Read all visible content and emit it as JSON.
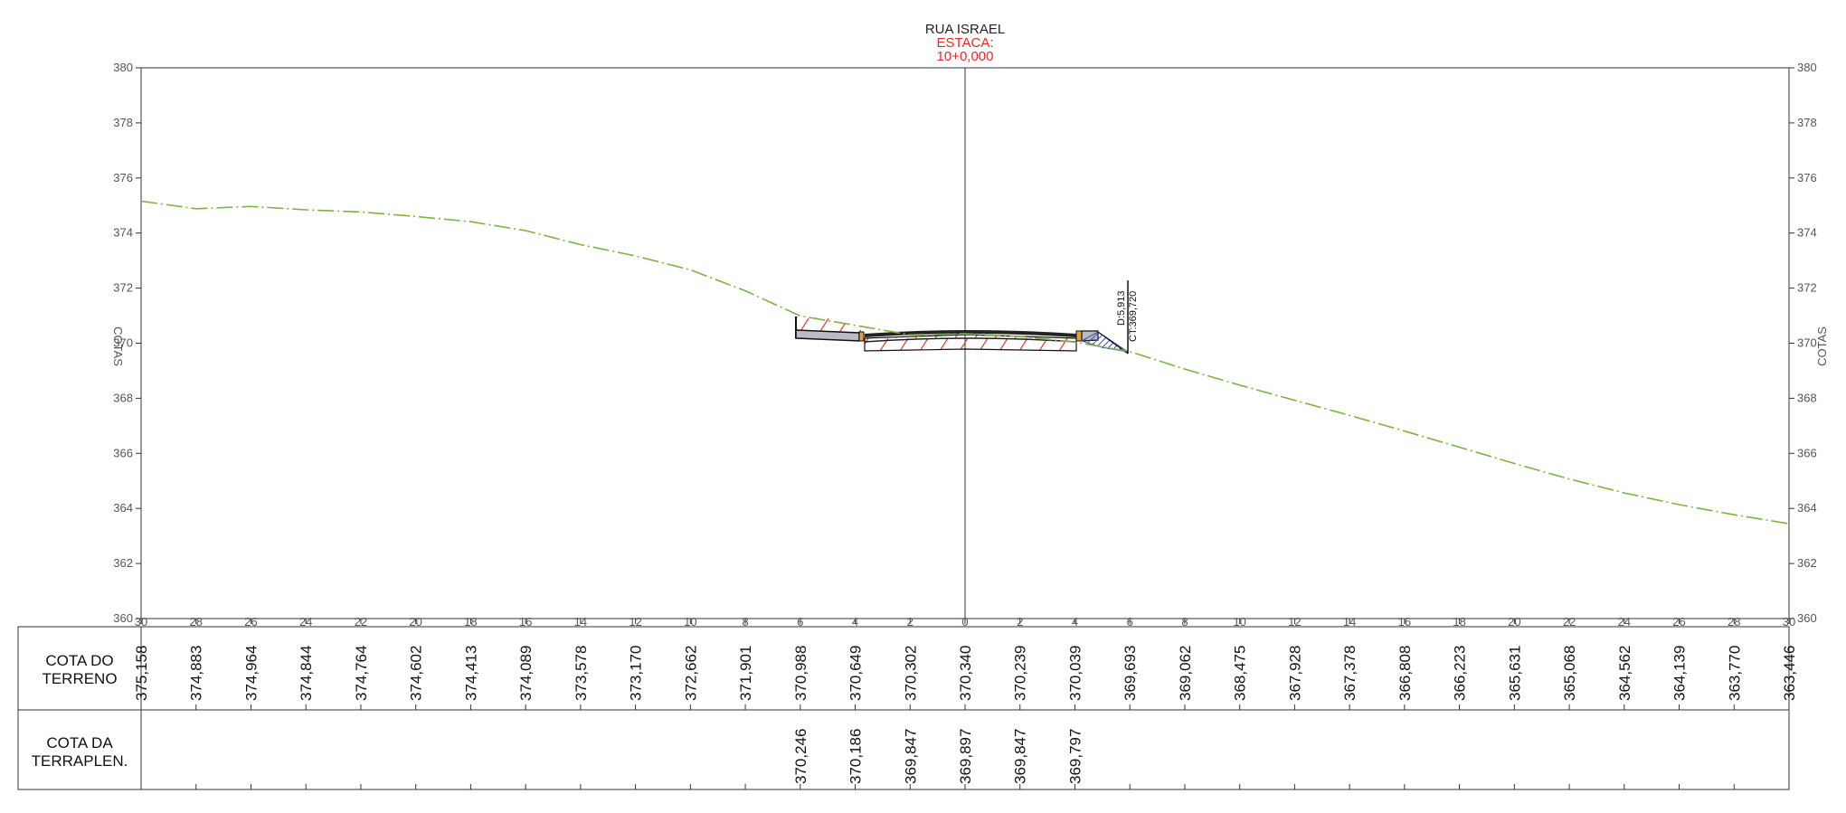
{
  "header": {
    "street": "RUA ISRAEL",
    "estaca_label": "ESTACA:",
    "estaca_value": "10+0,000"
  },
  "axis": {
    "left_title": "COTAS",
    "right_title": "COTAS",
    "elevation_ticks": [
      380,
      378,
      376,
      374,
      372,
      370,
      368,
      366,
      364,
      362,
      360
    ],
    "offset_ticks": [
      "30",
      "28",
      "26",
      "24",
      "22",
      "20",
      "18",
      "16",
      "14",
      "12",
      "10",
      "8",
      "6",
      "4",
      "2",
      "0",
      "2",
      "4",
      "6",
      "8",
      "10",
      "12",
      "14",
      "16",
      "18",
      "20",
      "22",
      "24",
      "26",
      "28",
      "30"
    ]
  },
  "table": {
    "row1_label_line1": "COTA DO",
    "row1_label_line2": "TERRENO",
    "row2_label_line1": "COTA DA",
    "row2_label_line2": "TERRAPLEN.",
    "terreno_values": [
      "375,158",
      "374,883",
      "374,964",
      "374,844",
      "374,764",
      "374,602",
      "374,413",
      "374,089",
      "373,578",
      "373,170",
      "372,662",
      "371,901",
      "370,988",
      "370,649",
      "370,302",
      "370,340",
      "370,239",
      "370,039",
      "369,693",
      "369,062",
      "368,475",
      "367,928",
      "367,378",
      "366,808",
      "366,223",
      "365,631",
      "365,068",
      "364,562",
      "364,139",
      "363,770",
      "363,446"
    ],
    "terraplen_values": [
      "370,246",
      "370,186",
      "369,847",
      "369,897",
      "369,847",
      "369,797"
    ],
    "terraplen_offsets": [
      -6,
      -4,
      -2,
      0,
      2,
      4
    ]
  },
  "annotation": {
    "line1": "D:5,913",
    "line2": "CT:369,720"
  },
  "colors": {
    "terrain": "#7cb342",
    "header_accent": "#e8292c",
    "cut_hatch": "#e53935",
    "fill_hatch": "#3949ab",
    "pavement": "#b8bcc4"
  },
  "chart_data": {
    "type": "line",
    "xlim": [
      -30,
      30
    ],
    "ylim": [
      360,
      380
    ],
    "x": [
      -30,
      -28,
      -26,
      -24,
      -22,
      -20,
      -18,
      -16,
      -14,
      -12,
      -10,
      -8,
      -6,
      -4,
      -2,
      0,
      2,
      4,
      6,
      8,
      10,
      12,
      14,
      16,
      18,
      20,
      22,
      24,
      26,
      28,
      30
    ],
    "series": [
      {
        "values": [
          375.158,
          374.883,
          374.964,
          374.844,
          374.764,
          374.602,
          374.413,
          374.089,
          373.578,
          373.17,
          372.662,
          371.901,
          370.988,
          370.649,
          370.302,
          370.34,
          370.239,
          370.039,
          369.693,
          369.062,
          368.475,
          367.928,
          367.378,
          366.808,
          366.223,
          365.631,
          365.068,
          364.562,
          364.139,
          363.77,
          363.446
        ]
      }
    ]
  }
}
